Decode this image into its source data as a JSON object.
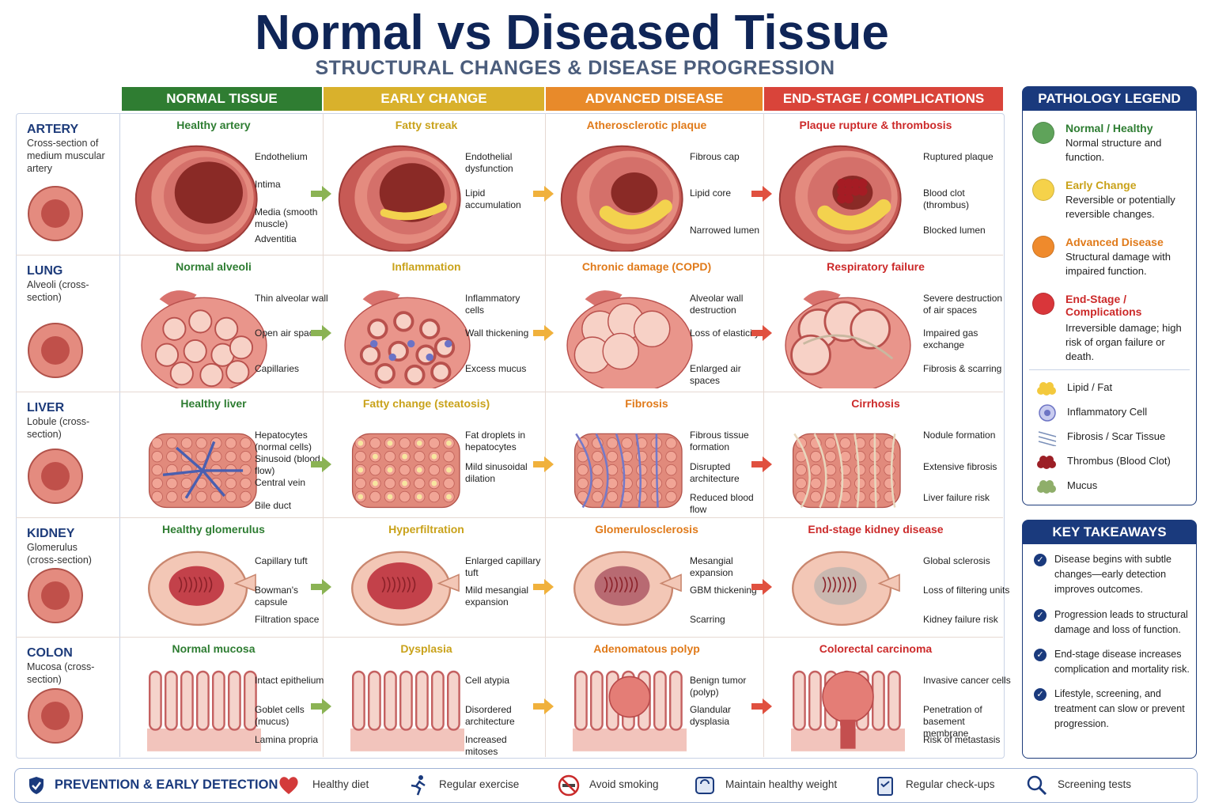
{
  "title": "Normal vs Diseased Tissue",
  "subtitle": "STRUCTURAL CHANGES & DISEASE PROGRESSION",
  "columns": [
    {
      "label": "NORMAL TISSUE",
      "color": "#2f7d32"
    },
    {
      "label": "EARLY CHANGE",
      "color": "#d9b12c"
    },
    {
      "label": "ADVANCED DISEASE",
      "color": "#e88a2a"
    },
    {
      "label": "END-STAGE / COMPLICATIONS",
      "color": "#d9443a"
    }
  ],
  "title_colors": [
    "#2e7d32",
    "#c9a21a",
    "#e07a1a",
    "#cc2a2a"
  ],
  "rows": [
    {
      "name": "ARTERY",
      "desc": "Cross-section of medium muscular artery",
      "cells": [
        {
          "title": "Healthy artery",
          "notes": [
            "Endothelium",
            "Intima",
            "Media (smooth muscle)",
            "Adventitia"
          ]
        },
        {
          "title": "Fatty streak",
          "notes": [
            "Endothelial dysfunction",
            "Lipid accumulation"
          ]
        },
        {
          "title": "Atherosclerotic plaque",
          "notes": [
            "Fibrous cap",
            "Lipid core",
            "Narrowed lumen"
          ]
        },
        {
          "title": "Plaque rupture & thrombosis",
          "notes": [
            "Ruptured plaque",
            "Blood clot (thrombus)",
            "Blocked lumen"
          ]
        }
      ]
    },
    {
      "name": "LUNG",
      "desc": "Alveoli (cross-section)",
      "cells": [
        {
          "title": "Normal alveoli",
          "notes": [
            "Thin alveolar wall",
            "Open air space",
            "Capillaries"
          ]
        },
        {
          "title": "Inflammation",
          "notes": [
            "Inflammatory cells",
            "Wall thickening",
            "Excess mucus"
          ]
        },
        {
          "title": "Chronic damage (COPD)",
          "notes": [
            "Alveolar wall destruction",
            "Loss of elasticity",
            "Enlarged air spaces"
          ]
        },
        {
          "title": "Respiratory failure",
          "notes": [
            "Severe destruction of air spaces",
            "Impaired gas exchange",
            "Fibrosis & scarring"
          ]
        }
      ]
    },
    {
      "name": "LIVER",
      "desc": "Lobule (cross-section)",
      "cells": [
        {
          "title": "Healthy liver",
          "notes": [
            "Hepatocytes (normal cells)",
            "Sinusoid (blood flow)",
            "Central vein",
            "Bile duct"
          ]
        },
        {
          "title": "Fatty change (steatosis)",
          "notes": [
            "Fat droplets in hepatocytes",
            "Mild sinusoidal dilation"
          ]
        },
        {
          "title": "Fibrosis",
          "notes": [
            "Fibrous tissue formation",
            "Disrupted architecture",
            "Reduced blood flow"
          ]
        },
        {
          "title": "Cirrhosis",
          "notes": [
            "Nodule formation",
            "Extensive fibrosis",
            "Liver failure risk"
          ]
        }
      ]
    },
    {
      "name": "KIDNEY",
      "desc": "Glomerulus (cross-section)",
      "cells": [
        {
          "title": "Healthy glomerulus",
          "notes": [
            "Capillary tuft",
            "Bowman's capsule",
            "Filtration space"
          ]
        },
        {
          "title": "Hyperfiltration",
          "notes": [
            "Enlarged capillary tuft",
            "Mild mesangial expansion"
          ]
        },
        {
          "title": "Glomerulosclerosis",
          "notes": [
            "Mesangial expansion",
            "GBM thickening",
            "Scarring"
          ]
        },
        {
          "title": "End-stage kidney disease",
          "notes": [
            "Global sclerosis",
            "Loss of filtering units",
            "Kidney failure risk"
          ]
        }
      ]
    },
    {
      "name": "COLON",
      "desc": "Mucosa (cross-section)",
      "cells": [
        {
          "title": "Normal mucosa",
          "notes": [
            "Intact epithelium",
            "Goblet cells (mucus)",
            "Lamina propria"
          ]
        },
        {
          "title": "Dysplasia",
          "notes": [
            "Cell atypia",
            "Disordered architecture",
            "Increased mitoses"
          ]
        },
        {
          "title": "Adenomatous polyp",
          "notes": [
            "Benign tumor (polyp)",
            "Glandular dysplasia"
          ]
        },
        {
          "title": "Colorectal carcinoma",
          "notes": [
            "Invasive cancer cells",
            "Penetration of basement membrane",
            "Risk of metastasis"
          ]
        }
      ]
    }
  ],
  "legend": {
    "title": "PATHOLOGY LEGEND",
    "stages": [
      {
        "name": "Normal / Healthy",
        "desc": "Normal structure and function.",
        "color": "#5fa35a",
        "text_color": "#2e7d32"
      },
      {
        "name": "Early Change",
        "desc": "Reversible or potentially reversible changes.",
        "color": "#f5d24a",
        "text_color": "#c9a21a"
      },
      {
        "name": "Advanced Disease",
        "desc": "Structural damage with impaired function.",
        "color": "#ef8a2c",
        "text_color": "#e07a1a"
      },
      {
        "name": "End-Stage / Complications",
        "desc": "Irreversible damage; high risk of organ failure or death.",
        "color": "#d9363a",
        "text_color": "#cc2a2a"
      }
    ],
    "symbols": [
      {
        "icon": "lipid-fat-icon",
        "label": "Lipid / Fat"
      },
      {
        "icon": "inflammatory-cell-icon",
        "label": "Inflammatory Cell"
      },
      {
        "icon": "fibrosis-icon",
        "label": "Fibrosis / Scar Tissue"
      },
      {
        "icon": "thrombus-icon",
        "label": "Thrombus (Blood Clot)"
      },
      {
        "icon": "mucus-icon",
        "label": "Mucus"
      }
    ]
  },
  "takeaways": {
    "title": "KEY TAKEAWAYS",
    "items": [
      "Disease begins with subtle changes—early detection improves outcomes.",
      "Progression leads to structural damage and loss of function.",
      "End-stage disease increases complication and mortality risk.",
      "Lifestyle, screening, and treatment can slow or prevent progression."
    ]
  },
  "prevention": {
    "title": "PREVENTION & EARLY DETECTION",
    "items": [
      {
        "icon": "heart-icon",
        "label": "Healthy diet"
      },
      {
        "icon": "runner-icon",
        "label": "Regular exercise"
      },
      {
        "icon": "no-smoking-icon",
        "label": "Avoid smoking"
      },
      {
        "icon": "scale-icon",
        "label": "Maintain healthy weight"
      },
      {
        "icon": "clipboard-icon",
        "label": "Regular check-ups"
      },
      {
        "icon": "magnifier-icon",
        "label": "Screening tests"
      }
    ]
  }
}
